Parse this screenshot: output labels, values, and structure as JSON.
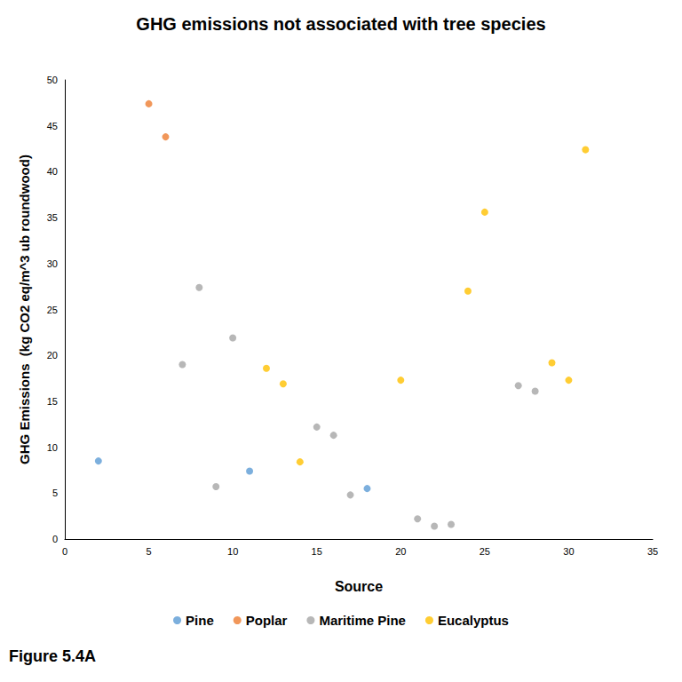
{
  "chart_data": {
    "type": "scatter",
    "title": "GHG emissions not associated with tree species",
    "x_label": "Source",
    "y_label": "GHG Emissions  (kg CO2 eq/m^3 ub roundwood)",
    "annotations": [
      "Figure 5.4A"
    ],
    "xlim": [
      0,
      35
    ],
    "xticks": [
      0,
      5,
      10,
      15,
      20,
      25,
      30,
      35
    ],
    "ylim": [
      0,
      50
    ],
    "yticks": [
      0,
      5,
      10,
      15,
      20,
      25,
      30,
      35,
      40,
      45,
      50
    ],
    "grid": false,
    "legend": "bottom",
    "marker": "circle",
    "series": [
      {
        "name": "Pine",
        "color": "#5b9bd5",
        "x": [
          2,
          11,
          18
        ],
        "values": [
          8.5,
          7.4,
          5.5
        ]
      },
      {
        "name": "Poplar",
        "color": "#ed7d31",
        "x": [
          5,
          6
        ],
        "values": [
          47.4,
          43.8
        ]
      },
      {
        "name": "Maritime Pine",
        "color": "#a5a5a5",
        "x": [
          7,
          8,
          9,
          10,
          15,
          16,
          17,
          21,
          22,
          23,
          27,
          28
        ],
        "values": [
          19,
          27.4,
          5.7,
          21.9,
          12.2,
          11.3,
          4.8,
          2.2,
          1.4,
          1.6,
          16.7,
          16.1
        ]
      },
      {
        "name": "Eucalyptus",
        "color": "#ffc000",
        "x": [
          12,
          13,
          14,
          20,
          24,
          25,
          29,
          30,
          31
        ],
        "values": [
          18.6,
          16.9,
          8.4,
          17.3,
          27,
          35.6,
          19.2,
          17.3,
          42.4
        ]
      }
    ]
  }
}
